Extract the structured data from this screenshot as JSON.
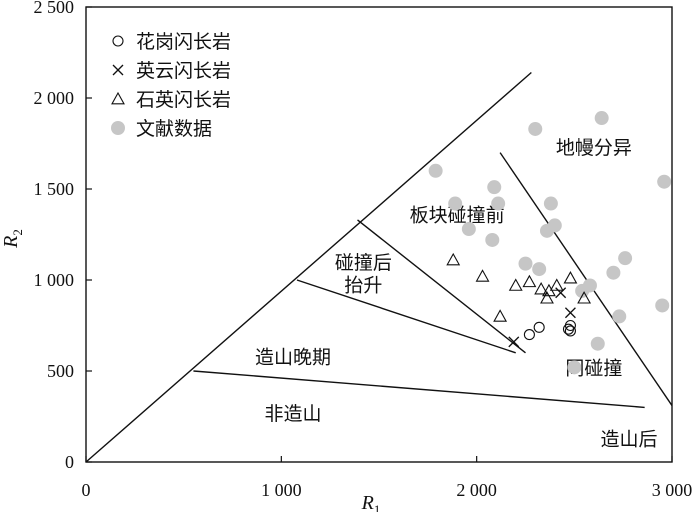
{
  "chart_data": {
    "type": "scatter",
    "xlabel": "R",
    "xlabel_sub": "1",
    "ylabel": "R",
    "ylabel_sub": "2",
    "xlim": [
      0,
      3000
    ],
    "ylim": [
      0,
      2500
    ],
    "x_ticks": [
      {
        "value": 0,
        "label": "0"
      },
      {
        "value": 1000,
        "label": "1 000"
      },
      {
        "value": 2000,
        "label": "2 000"
      },
      {
        "value": 3000,
        "label": "3 000"
      }
    ],
    "y_ticks": [
      {
        "value": 0,
        "label": "0"
      },
      {
        "value": 500,
        "label": "500"
      },
      {
        "value": 1000,
        "label": "1 000"
      },
      {
        "value": 1500,
        "label": "1 500"
      },
      {
        "value": 2000,
        "label": "2 000"
      },
      {
        "value": 2500,
        "label": "2 500"
      }
    ],
    "boundaries": [
      {
        "points": [
          [
            0,
            0
          ],
          [
            2280,
            2140
          ]
        ]
      },
      {
        "points": [
          [
            1390,
            1330
          ],
          [
            2250,
            600
          ]
        ]
      },
      {
        "points": [
          [
            1080,
            1000
          ],
          [
            2200,
            600
          ]
        ]
      },
      {
        "points": [
          [
            2120,
            1700
          ],
          [
            3000,
            310
          ]
        ]
      },
      {
        "points": [
          [
            550,
            500
          ],
          [
            2860,
            300
          ]
        ]
      }
    ],
    "regions": [
      {
        "label": "地幔分异",
        "x": 2600,
        "y": 1730
      },
      {
        "label": "板块碰撞前",
        "x": 1900,
        "y": 1360
      },
      {
        "label": "碰撞后",
        "x": 1420,
        "y": 1100
      },
      {
        "label": "抬升",
        "x": 1420,
        "y": 975
      },
      {
        "label": "同碰撞",
        "x": 2600,
        "y": 520
      },
      {
        "label": "造山晚期",
        "x": 1060,
        "y": 580
      },
      {
        "label": "非造山",
        "x": 1060,
        "y": 270
      },
      {
        "label": "造山后",
        "x": 2780,
        "y": 130
      }
    ],
    "series": [
      {
        "name": "花岗闪长岩",
        "marker": "circle",
        "points": [
          [
            2270,
            700
          ],
          [
            2320,
            740
          ],
          [
            2470,
            730
          ],
          [
            2480,
            750
          ],
          [
            2480,
            720
          ]
        ]
      },
      {
        "name": "英云闪长岩",
        "marker": "cross",
        "points": [
          [
            2190,
            660
          ],
          [
            2430,
            930
          ],
          [
            2480,
            820
          ]
        ]
      },
      {
        "name": "石英闪长岩",
        "marker": "triangle",
        "points": [
          [
            1880,
            1110
          ],
          [
            2030,
            1020
          ],
          [
            2120,
            800
          ],
          [
            2200,
            970
          ],
          [
            2270,
            990
          ],
          [
            2330,
            950
          ],
          [
            2360,
            900
          ],
          [
            2370,
            940
          ],
          [
            2410,
            970
          ],
          [
            2480,
            1010
          ],
          [
            2550,
            900
          ]
        ]
      },
      {
        "name": "文献数据",
        "marker": "dot",
        "color": "#c6c6c6",
        "points": [
          [
            1790,
            1600
          ],
          [
            1890,
            1420
          ],
          [
            1960,
            1280
          ],
          [
            2080,
            1220
          ],
          [
            2090,
            1510
          ],
          [
            2110,
            1420
          ],
          [
            2250,
            1090
          ],
          [
            2300,
            1830
          ],
          [
            2320,
            1060
          ],
          [
            2360,
            1270
          ],
          [
            2380,
            1420
          ],
          [
            2400,
            1300
          ],
          [
            2540,
            940
          ],
          [
            2580,
            970
          ],
          [
            2620,
            650
          ],
          [
            2640,
            1890
          ],
          [
            2700,
            1040
          ],
          [
            2730,
            800
          ],
          [
            2760,
            1120
          ],
          [
            2950,
            860
          ],
          [
            2960,
            1540
          ],
          [
            2500,
            520
          ]
        ]
      }
    ]
  }
}
